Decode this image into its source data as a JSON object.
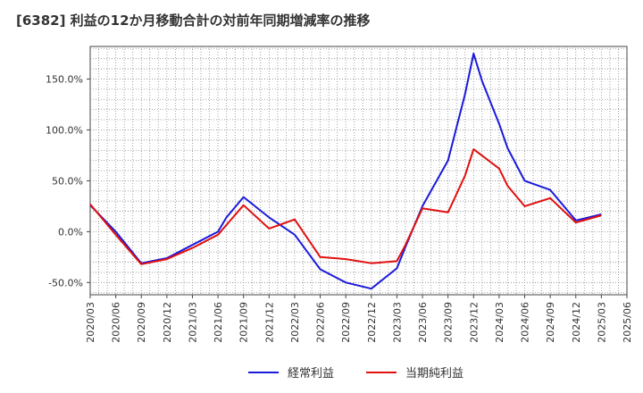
{
  "chart_data": {
    "type": "line",
    "title": "[6382]  利益の12か月移動合計の対前年同期増減率の推移",
    "xlabel": "",
    "ylabel": "",
    "ylim": [
      -62,
      182
    ],
    "yticks": [
      -50,
      0,
      50,
      100,
      150
    ],
    "ytick_labels": [
      "-50.0%",
      "0.0%",
      "50.0%",
      "100.0%",
      "150.0%"
    ],
    "xticks": [
      "2020/03",
      "2020/06",
      "2020/09",
      "2020/12",
      "2021/03",
      "2021/06",
      "2021/09",
      "2021/12",
      "2022/03",
      "2022/06",
      "2022/09",
      "2022/12",
      "2023/03",
      "2023/06",
      "2023/09",
      "2023/12",
      "2024/03",
      "2024/06",
      "2024/09",
      "2024/12",
      "2025/03",
      "2025/06"
    ],
    "grid": true,
    "legend_position": "bottom",
    "series": [
      {
        "name": "経常利益",
        "color": "#1a1adc",
        "points": [
          {
            "x": "2020/03",
            "y": 26
          },
          {
            "x": "2020/06",
            "y": 0
          },
          {
            "x": "2020/09",
            "y": -31
          },
          {
            "x": "2020/12",
            "y": -26
          },
          {
            "x": "2021/03",
            "y": -13
          },
          {
            "x": "2021/06",
            "y": 0
          },
          {
            "x": "2021/07",
            "y": 14
          },
          {
            "x": "2021/09",
            "y": 34
          },
          {
            "x": "2021/12",
            "y": 14
          },
          {
            "x": "2022/03",
            "y": -3
          },
          {
            "x": "2022/06",
            "y": -37
          },
          {
            "x": "2022/09",
            "y": -50
          },
          {
            "x": "2022/12",
            "y": -56
          },
          {
            "x": "2023/03",
            "y": -36
          },
          {
            "x": "2023/04",
            "y": -15
          },
          {
            "x": "2023/06",
            "y": 25
          },
          {
            "x": "2023/09",
            "y": 70
          },
          {
            "x": "2023/11",
            "y": 135
          },
          {
            "x": "2023/12",
            "y": 175
          },
          {
            "x": "2024/01",
            "y": 148
          },
          {
            "x": "2024/03",
            "y": 106
          },
          {
            "x": "2024/04",
            "y": 82
          },
          {
            "x": "2024/06",
            "y": 50
          },
          {
            "x": "2024/09",
            "y": 41
          },
          {
            "x": "2024/12",
            "y": 11
          },
          {
            "x": "2025/03",
            "y": 17
          }
        ]
      },
      {
        "name": "当期純利益",
        "color": "#e01010",
        "points": [
          {
            "x": "2020/03",
            "y": 27
          },
          {
            "x": "2020/06",
            "y": -3
          },
          {
            "x": "2020/09",
            "y": -32
          },
          {
            "x": "2020/12",
            "y": -27
          },
          {
            "x": "2021/03",
            "y": -16
          },
          {
            "x": "2021/06",
            "y": -3
          },
          {
            "x": "2021/09",
            "y": 26
          },
          {
            "x": "2021/12",
            "y": 3
          },
          {
            "x": "2022/03",
            "y": 12
          },
          {
            "x": "2022/06",
            "y": -25
          },
          {
            "x": "2022/09",
            "y": -27
          },
          {
            "x": "2022/12",
            "y": -31
          },
          {
            "x": "2023/03",
            "y": -29
          },
          {
            "x": "2023/04",
            "y": -13
          },
          {
            "x": "2023/06",
            "y": 23
          },
          {
            "x": "2023/09",
            "y": 19
          },
          {
            "x": "2023/11",
            "y": 55
          },
          {
            "x": "2023/12",
            "y": 81
          },
          {
            "x": "2024/03",
            "y": 62
          },
          {
            "x": "2024/04",
            "y": 45
          },
          {
            "x": "2024/06",
            "y": 25
          },
          {
            "x": "2024/09",
            "y": 33
          },
          {
            "x": "2024/12",
            "y": 9
          },
          {
            "x": "2025/03",
            "y": 16
          }
        ]
      }
    ]
  }
}
